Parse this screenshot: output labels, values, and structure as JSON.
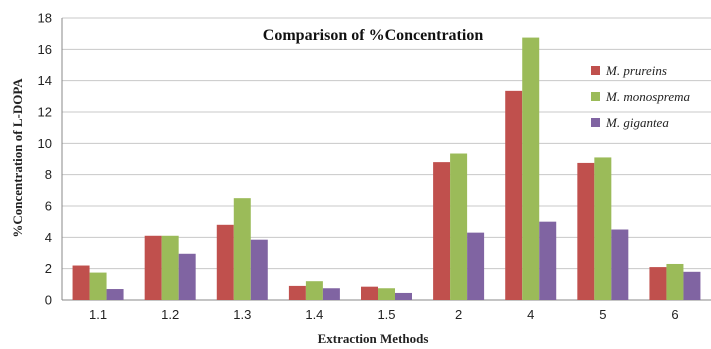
{
  "chart_data": {
    "type": "bar",
    "title": "Comparison of %Concentration",
    "xlabel": "Extraction Methods",
    "ylabel": "%Concentration of L-DOPA",
    "ylim": [
      0,
      18
    ],
    "yticks": [
      0,
      2,
      4,
      6,
      8,
      10,
      12,
      14,
      16,
      18
    ],
    "grid": true,
    "legend_position": "right",
    "categories": [
      "1.1",
      "1.2",
      "1.3",
      "1.4",
      "1.5",
      "2",
      "4",
      "5",
      "6"
    ],
    "series": [
      {
        "name": "M. prureins",
        "color": "#c0504d",
        "values": [
          2.2,
          4.1,
          4.8,
          0.9,
          0.85,
          8.8,
          13.35,
          8.75,
          2.1
        ]
      },
      {
        "name": "M. monosprema",
        "color": "#9bbb59",
        "values": [
          1.75,
          4.1,
          6.5,
          1.2,
          0.75,
          9.35,
          16.75,
          9.1,
          2.3
        ]
      },
      {
        "name": "M. gigantea",
        "color": "#8064a2",
        "values": [
          0.7,
          2.95,
          3.85,
          0.75,
          0.45,
          4.3,
          5.0,
          4.5,
          1.8
        ]
      }
    ]
  }
}
